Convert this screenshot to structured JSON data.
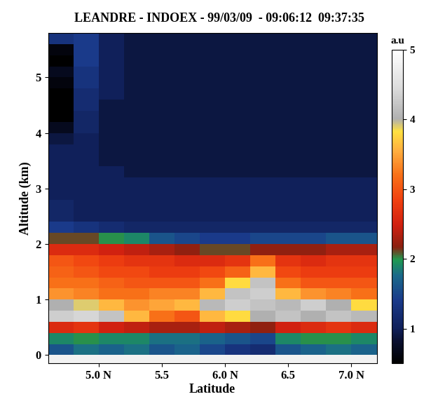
{
  "chart_data": {
    "type": "heatmap",
    "title": "LEANDRE - INDOEX - 99/03/09  - 09:06:12  09:37:35",
    "x_label": "Latitude",
    "y_label": "Altitude (km)",
    "xlim": [
      4.6,
      7.2
    ],
    "ylim": [
      -0.15,
      5.8
    ],
    "xticks": [
      {
        "value": 5.0,
        "label": "5.0 N"
      },
      5.5,
      {
        "value": 6.0,
        "label": "6.0 N"
      },
      6.5,
      {
        "value": 7.0,
        "label": "7.0 N"
      }
    ],
    "yticks": [
      0,
      1,
      2,
      3,
      4,
      5
    ],
    "x_edges": [
      4.6,
      4.8,
      5.0,
      5.2,
      5.4,
      5.6,
      5.8,
      6.0,
      6.2,
      6.4,
      6.6,
      6.8,
      7.0,
      7.2
    ],
    "y_edges": [
      -0.2,
      0.0,
      0.2,
      0.4,
      0.6,
      0.8,
      1.0,
      1.2,
      1.4,
      1.6,
      1.8,
      2.0,
      2.2,
      2.4,
      2.6,
      2.8,
      3.0,
      3.2,
      3.4,
      3.6,
      3.8,
      4.0,
      4.2,
      4.4,
      4.6,
      4.8,
      5.0,
      5.2,
      5.4,
      5.6,
      5.8
    ],
    "cells": [
      [
        4.8,
        4.8,
        4.8,
        4.8,
        4.8,
        4.8,
        4.8,
        4.8,
        4.8,
        4.8,
        4.8,
        4.8,
        4.8
      ],
      [
        1.6,
        1.8,
        1.7,
        1.8,
        1.6,
        1.7,
        1.5,
        1.3,
        1.2,
        1.6,
        1.7,
        1.8,
        1.7
      ],
      [
        1.9,
        2.0,
        1.9,
        1.9,
        1.8,
        1.8,
        1.7,
        1.6,
        1.5,
        1.9,
        2.0,
        2.0,
        1.9
      ],
      [
        2.6,
        2.7,
        2.5,
        2.4,
        2.3,
        2.3,
        2.4,
        2.3,
        2.2,
        2.5,
        2.6,
        2.7,
        2.6
      ],
      [
        4.3,
        4.4,
        4.2,
        3.6,
        3.2,
        3.0,
        3.6,
        3.8,
        4.0,
        4.2,
        4.0,
        4.2,
        4.1
      ],
      [
        4.0,
        3.9,
        3.6,
        3.4,
        3.5,
        3.6,
        4.1,
        4.3,
        4.2,
        4.1,
        4.3,
        4.0,
        3.8
      ],
      [
        3.4,
        3.3,
        3.2,
        3.2,
        3.3,
        3.3,
        3.6,
        4.2,
        4.3,
        3.6,
        3.4,
        3.3,
        3.2
      ],
      [
        3.2,
        3.2,
        3.1,
        3.0,
        3.0,
        3.0,
        3.2,
        3.8,
        4.2,
        3.2,
        3.0,
        3.0,
        3.0
      ],
      [
        3.1,
        3.0,
        2.9,
        2.9,
        2.8,
        2.8,
        2.9,
        3.1,
        3.6,
        2.9,
        2.8,
        2.8,
        2.8
      ],
      [
        3.0,
        2.9,
        2.8,
        2.7,
        2.7,
        2.6,
        2.6,
        2.7,
        3.2,
        2.7,
        2.6,
        2.7,
        2.7
      ],
      [
        2.6,
        2.6,
        2.5,
        2.4,
        2.3,
        2.2,
        2.1,
        2.1,
        2.2,
        2.2,
        2.2,
        2.3,
        2.3
      ],
      [
        2.1,
        2.1,
        2.0,
        1.9,
        1.6,
        1.5,
        1.4,
        1.4,
        1.5,
        1.5,
        1.5,
        1.6,
        1.6
      ],
      [
        1.4,
        1.3,
        1.2,
        1.1,
        1.1,
        1.1,
        1.1,
        1.1,
        1.1,
        1.1,
        1.1,
        1.1,
        1.1
      ],
      [
        1.1,
        1.0,
        1.0,
        1.0,
        1.0,
        1.0,
        1.0,
        1.0,
        1.0,
        1.0,
        1.0,
        1.0,
        1.0
      ],
      [
        1.1,
        1.0,
        1.0,
        1.0,
        1.0,
        1.0,
        1.0,
        1.0,
        1.0,
        1.0,
        1.0,
        1.0,
        1.0
      ],
      [
        1.0,
        1.0,
        1.0,
        1.0,
        1.0,
        1.0,
        1.0,
        1.0,
        1.0,
        1.0,
        1.0,
        1.0,
        1.0
      ],
      [
        1.0,
        1.0,
        1.0,
        1.0,
        1.0,
        1.0,
        1.0,
        1.0,
        1.0,
        1.0,
        1.0,
        1.0,
        1.0
      ],
      [
        1.0,
        1.0,
        1.0,
        0.9,
        0.9,
        0.9,
        0.9,
        0.9,
        0.9,
        0.9,
        0.9,
        0.9,
        0.9
      ],
      [
        1.0,
        1.0,
        0.9,
        0.9,
        0.9,
        0.9,
        0.9,
        0.9,
        0.9,
        0.9,
        0.9,
        0.9,
        0.9
      ],
      [
        1.0,
        1.0,
        0.9,
        0.9,
        0.9,
        0.9,
        0.9,
        0.9,
        0.9,
        0.9,
        0.9,
        0.9,
        0.9
      ],
      [
        0.9,
        1.0,
        0.9,
        0.9,
        0.9,
        0.9,
        0.9,
        0.9,
        0.9,
        0.9,
        0.9,
        0.9,
        0.9
      ],
      [
        0.7,
        1.1,
        0.9,
        0.9,
        0.9,
        0.9,
        0.9,
        0.9,
        0.9,
        0.9,
        0.9,
        0.9,
        0.9
      ],
      [
        0.5,
        1.1,
        0.9,
        0.9,
        0.9,
        0.9,
        0.9,
        0.9,
        0.9,
        0.9,
        0.9,
        0.9,
        0.9
      ],
      [
        0.5,
        1.2,
        0.9,
        0.9,
        0.9,
        0.9,
        0.9,
        0.9,
        0.9,
        0.9,
        0.9,
        0.9,
        0.9
      ],
      [
        0.5,
        1.2,
        1.0,
        0.9,
        0.9,
        0.9,
        0.9,
        0.9,
        0.9,
        0.9,
        0.9,
        0.9,
        0.9
      ],
      [
        0.6,
        1.3,
        1.0,
        0.9,
        0.9,
        0.9,
        0.9,
        0.9,
        0.9,
        0.9,
        0.9,
        0.9,
        0.9
      ],
      [
        0.7,
        1.3,
        1.0,
        0.9,
        0.9,
        0.9,
        0.9,
        0.9,
        0.9,
        0.9,
        0.9,
        0.9,
        0.9
      ],
      [
        0.5,
        1.4,
        1.0,
        0.9,
        0.9,
        0.9,
        0.9,
        0.9,
        0.9,
        0.9,
        0.9,
        0.9,
        0.9
      ],
      [
        0.6,
        1.4,
        1.0,
        0.9,
        0.9,
        0.9,
        0.9,
        0.9,
        0.9,
        0.9,
        0.9,
        0.9,
        0.9
      ],
      [
        1.3,
        1.4,
        1.0,
        0.9,
        0.9,
        0.9,
        0.9,
        0.9,
        0.9,
        0.9,
        0.9,
        0.9,
        0.9
      ]
    ],
    "colorbar": {
      "label": "a.u",
      "range": [
        0.5,
        5
      ],
      "ticks": [
        1,
        2,
        3,
        4,
        5
      ]
    }
  }
}
